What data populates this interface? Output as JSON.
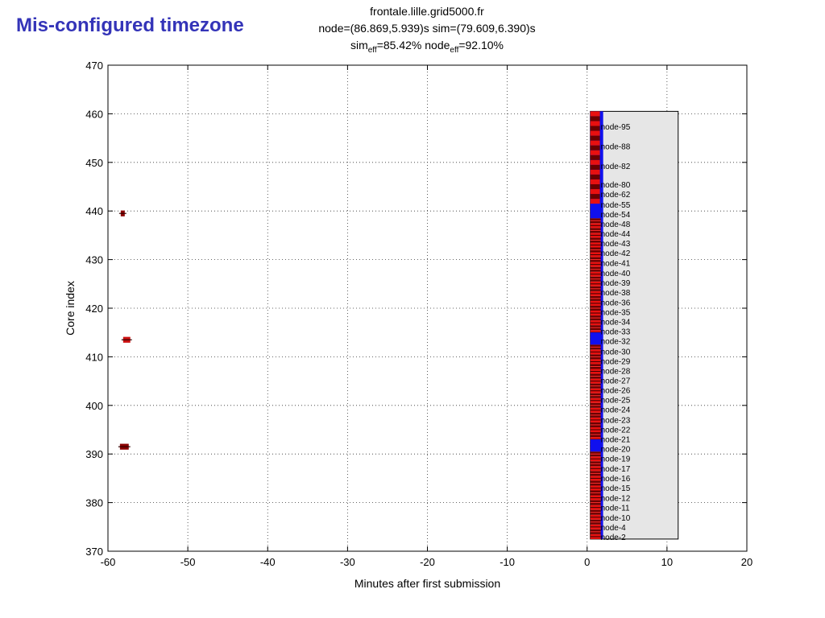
{
  "slide": {
    "title": "Mis-configured timezone"
  },
  "chart_data": {
    "type": "scatter",
    "title": "frontale.lille.grid5000.fr",
    "subtitle_line": "node=(86.869,5.939)s sim=(79.609,6.390)s",
    "efficiency": {
      "sim_label": "sim",
      "sim_sub": "eff",
      "sim_value": "=85.42%",
      "node_label": " node",
      "node_sub": "eff",
      "node_value": "=92.10%"
    },
    "xlabel": "Minutes after first submission",
    "ylabel": "Core index",
    "xlim": [
      -60,
      20
    ],
    "ylim": [
      370,
      470
    ],
    "xticks": [
      -60,
      -50,
      -40,
      -30,
      -20,
      -10,
      0,
      10,
      20
    ],
    "yticks": [
      370,
      380,
      390,
      400,
      410,
      420,
      430,
      440,
      450,
      460
    ],
    "grid": true,
    "outlier_jobs": [
      {
        "x_start": -58.4,
        "x_end": -57.9,
        "y": 439.5,
        "color": "#8b0000"
      },
      {
        "x_start": -58.1,
        "x_end": -57.2,
        "y": 413.5,
        "color": "#cc1111"
      },
      {
        "x_start": -58.5,
        "x_end": -57.4,
        "y": 391.5,
        "color": "#8b0000"
      }
    ],
    "main_band": {
      "x_start": 0.4,
      "x_end": 1.9,
      "y_start": 372.5,
      "y_end": 460.5,
      "color_a": "#e81010",
      "color_b": "#6a0000"
    },
    "blue_segments": [
      {
        "y_start": 460.5,
        "y_end": 438.5
      },
      {
        "y_start": 415,
        "y_end": 412.5
      },
      {
        "y_start": 393,
        "y_end": 390.5
      }
    ],
    "node_box": {
      "x_start": 0.4,
      "x_end": 11.4,
      "y_start": 372.5,
      "y_end": 460.5,
      "color": "#e6e6e6"
    },
    "node_labels": [
      {
        "text": "node-95",
        "y": 457.3
      },
      {
        "text": "node-88",
        "y": 453.3
      },
      {
        "text": "node-82",
        "y": 449.2
      },
      {
        "text": "node-80",
        "y": 445.4
      },
      {
        "text": "node-62",
        "y": 443.4
      },
      {
        "text": "node-55",
        "y": 441.3
      },
      {
        "text": "node-54",
        "y": 439.3
      },
      {
        "text": "node-48",
        "y": 437.3
      },
      {
        "text": "node-44",
        "y": 435.3
      },
      {
        "text": "node-43",
        "y": 433.3
      },
      {
        "text": "node-42",
        "y": 431.3
      },
      {
        "text": "node-41",
        "y": 429.3
      },
      {
        "text": "node-40",
        "y": 427.2
      },
      {
        "text": "node-39",
        "y": 425.2
      },
      {
        "text": "node-38",
        "y": 423.2
      },
      {
        "text": "node-36",
        "y": 421.2
      },
      {
        "text": "node-35",
        "y": 419.2
      },
      {
        "text": "node-34",
        "y": 417.2
      },
      {
        "text": "node-33",
        "y": 415.2
      },
      {
        "text": "node-32",
        "y": 413.2
      },
      {
        "text": "node-30",
        "y": 411.1
      },
      {
        "text": "node-29",
        "y": 409.1
      },
      {
        "text": "node-28",
        "y": 407.1
      },
      {
        "text": "node-27",
        "y": 405.1
      },
      {
        "text": "node-26",
        "y": 403.1
      },
      {
        "text": "node-25",
        "y": 401.1
      },
      {
        "text": "node-24",
        "y": 399.1
      },
      {
        "text": "node-23",
        "y": 397.0
      },
      {
        "text": "node-22",
        "y": 395.0
      },
      {
        "text": "node-21",
        "y": 393.0
      },
      {
        "text": "node-20",
        "y": 391.0
      },
      {
        "text": "node-19",
        "y": 389.0
      },
      {
        "text": "node-17",
        "y": 387.0
      },
      {
        "text": "node-16",
        "y": 385.0
      },
      {
        "text": "node-15",
        "y": 383.0
      },
      {
        "text": "node-12",
        "y": 380.9
      },
      {
        "text": "node-11",
        "y": 378.9
      },
      {
        "text": "node-10",
        "y": 376.9
      },
      {
        "text": "node-4",
        "y": 374.9
      },
      {
        "text": "node-2",
        "y": 372.9
      }
    ]
  }
}
